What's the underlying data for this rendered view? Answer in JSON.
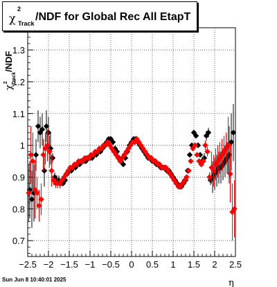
{
  "title": {
    "symbol": "χ",
    "superscript": "2",
    "subscript": "Track",
    "text": "/NDF for Global Rec All EtapT"
  },
  "timestamp": "Sun Jun  8 10:40:01 2025",
  "colors": {
    "series_black": "#000000",
    "series_red": "#ff0000",
    "grid": "#000000"
  },
  "chart_data": {
    "type": "scatter",
    "title": "χ²_Track/NDF for Global Rec All EtapT",
    "xlabel": "η",
    "ylabel": "χ²_Track/NDF",
    "xlim": [
      -2.5,
      2.5
    ],
    "ylim": [
      0.65,
      1.37
    ],
    "x_ticks": [
      -2.5,
      -2,
      -1.5,
      -1,
      -0.5,
      0,
      0.5,
      1,
      1.5,
      2,
      2.5
    ],
    "x_tick_labels": [
      "−2.5",
      "−2",
      "−1.5",
      "−1",
      "−0.5",
      "0",
      "0.5",
      "1",
      "1.5",
      "2",
      "2.5"
    ],
    "y_ticks": [
      0.7,
      0.8,
      0.9,
      1.0,
      1.1,
      1.2,
      1.3
    ],
    "y_tick_labels": [
      "0.7",
      "0.8",
      "0.9",
      "1",
      "1.1",
      "1.2",
      "1.3"
    ],
    "grid": true,
    "series": [
      {
        "color": "#000000",
        "x": [
          -2.45,
          -2.4,
          -2.35,
          -2.3,
          -2.25,
          -2.2,
          -2.15,
          -2.1,
          -2.05,
          -2.0,
          -1.95,
          -1.9,
          -1.85,
          -1.8,
          -1.75,
          -1.7,
          -1.65,
          -1.6,
          -1.55,
          -1.5,
          -1.45,
          -1.4,
          -1.35,
          -1.3,
          -1.25,
          -1.2,
          -1.15,
          -1.1,
          -1.05,
          -1.0,
          -0.95,
          -0.9,
          -0.85,
          -0.8,
          -0.75,
          -0.7,
          -0.65,
          -0.6,
          -0.55,
          -0.5,
          -0.45,
          -0.4,
          -0.35,
          -0.3,
          -0.25,
          -0.2,
          -0.15,
          -0.1,
          -0.05,
          0.0,
          0.05,
          0.1,
          0.15,
          0.2,
          0.25,
          0.3,
          0.35,
          0.4,
          0.45,
          0.5,
          0.55,
          0.6,
          0.65,
          0.7,
          0.75,
          0.8,
          0.85,
          0.9,
          0.95,
          1.0,
          1.05,
          1.1,
          1.15,
          1.2,
          1.25,
          1.3,
          1.35,
          1.4,
          1.45,
          1.5,
          1.55,
          1.6,
          1.65,
          1.7,
          1.75,
          1.8,
          1.85,
          1.9,
          1.95,
          2.0,
          2.05,
          2.1,
          2.15,
          2.2,
          2.25,
          2.3,
          2.35,
          2.4,
          2.45
        ],
        "y": [
          0.86,
          0.83,
          0.85,
          0.97,
          1.06,
          1.04,
          1.05,
          0.92,
          1.06,
          1.04,
          0.99,
          0.96,
          0.9,
          0.89,
          0.89,
          0.88,
          0.88,
          0.89,
          0.91,
          0.92,
          0.92,
          0.93,
          0.93,
          0.94,
          0.94,
          0.95,
          0.95,
          0.95,
          0.96,
          0.96,
          0.96,
          0.97,
          0.97,
          0.98,
          0.98,
          0.99,
          1.0,
          1.01,
          1.02,
          1.02,
          1.01,
          0.99,
          0.98,
          0.96,
          0.95,
          0.94,
          0.96,
          0.98,
          1.0,
          1.01,
          1.02,
          1.02,
          1.01,
          1.0,
          0.99,
          0.98,
          0.97,
          0.96,
          0.96,
          0.95,
          0.95,
          0.94,
          0.94,
          0.93,
          0.93,
          0.93,
          0.92,
          0.92,
          0.91,
          0.9,
          0.89,
          0.88,
          0.87,
          0.87,
          0.88,
          0.89,
          0.92,
          0.97,
          1.0,
          1.04,
          1.03,
          1.0,
          0.97,
          0.95,
          0.96,
          1.03,
          1.04,
          0.89,
          0.9,
          0.91,
          0.92,
          0.93,
          0.93,
          0.94,
          0.95,
          0.96,
          0.97,
          1.01,
          1.04
        ]
      },
      {
        "color": "#ff0000",
        "x": [
          -2.475,
          -2.425,
          -2.375,
          -2.325,
          -2.275,
          -2.225,
          -2.175,
          -2.125,
          -2.075,
          -2.025,
          -1.975,
          -1.925,
          -1.875,
          -1.825,
          -1.775,
          -1.725,
          -1.675,
          -1.625,
          -1.575,
          -1.525,
          -1.475,
          -1.425,
          -1.375,
          -1.325,
          -1.275,
          -1.225,
          -1.175,
          -1.125,
          -1.075,
          -1.025,
          -0.975,
          -0.925,
          -0.875,
          -0.825,
          -0.775,
          -0.725,
          -0.675,
          -0.625,
          -0.575,
          -0.525,
          -0.475,
          -0.425,
          -0.375,
          -0.325,
          -0.275,
          -0.225,
          -0.175,
          -0.125,
          -0.075,
          -0.025,
          0.025,
          0.075,
          0.125,
          0.175,
          0.225,
          0.275,
          0.325,
          0.375,
          0.425,
          0.475,
          0.525,
          0.575,
          0.625,
          0.675,
          0.725,
          0.775,
          0.825,
          0.875,
          0.925,
          0.975,
          1.025,
          1.075,
          1.125,
          1.175,
          1.225,
          1.275,
          1.325,
          1.375,
          1.425,
          1.475,
          1.525,
          1.575,
          1.625,
          1.675,
          1.725,
          1.775,
          1.825,
          1.875,
          1.925,
          1.975,
          2.025,
          2.075,
          2.125,
          2.175,
          2.225,
          2.275,
          2.325,
          2.375,
          2.425,
          2.475
        ],
        "y": [
          0.85,
          0.97,
          0.95,
          0.86,
          0.85,
          0.81,
          0.83,
          0.97,
          0.99,
          1.0,
          0.98,
          0.92,
          0.89,
          0.88,
          0.88,
          0.88,
          0.89,
          0.9,
          0.91,
          0.92,
          0.93,
          0.93,
          0.94,
          0.94,
          0.95,
          0.95,
          0.95,
          0.96,
          0.96,
          0.96,
          0.97,
          0.97,
          0.98,
          0.98,
          0.99,
          0.99,
          1.0,
          1.0,
          1.01,
          1.0,
          0.99,
          0.98,
          0.97,
          0.96,
          0.95,
          0.96,
          0.97,
          0.98,
          0.99,
          1.0,
          1.01,
          1.01,
          1.02,
          1.01,
          1.0,
          0.99,
          0.98,
          0.97,
          0.96,
          0.96,
          0.95,
          0.95,
          0.94,
          0.94,
          0.93,
          0.93,
          0.93,
          0.92,
          0.91,
          0.9,
          0.89,
          0.88,
          0.87,
          0.87,
          0.88,
          0.89,
          0.9,
          0.92,
          0.95,
          0.99,
          1.0,
          0.97,
          0.95,
          0.94,
          0.95,
          1.0,
          0.98,
          0.9,
          0.93,
          0.92,
          0.94,
          0.95,
          0.96,
          0.97,
          0.98,
          0.99,
          1.0,
          0.91,
          0.79,
          0.8
        ]
      }
    ]
  }
}
